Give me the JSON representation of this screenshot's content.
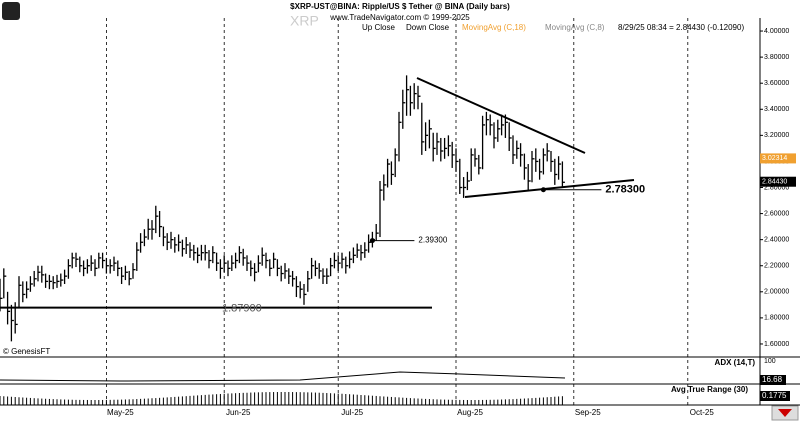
{
  "header": {
    "title": "$XRP-UST@BINA:  Ripple/US $ Tether @ BINA  (Daily bars)",
    "source": "www.TradeNavigator.com © 1999-2025",
    "watermark": "XRP"
  },
  "legend": [
    "Up Close",
    "Down Close",
    "MovingAvg (C,18)",
    "MovingAvg (C,8)"
  ],
  "status": "8/29/25 08:34 = 2.84430 (-0.12090)",
  "credit": "© GenesisFT",
  "chart_data": {
    "type": "ohlc",
    "x": [
      0,
      1,
      2,
      3,
      4,
      5,
      6,
      7,
      8,
      9,
      10,
      11,
      12,
      13,
      14,
      15,
      16,
      17,
      18,
      19,
      20,
      21,
      22,
      23,
      24,
      25,
      26,
      27,
      28,
      29,
      30,
      31,
      32,
      33,
      34,
      35,
      36,
      37,
      38,
      39,
      40,
      41,
      42,
      43,
      44,
      45,
      46,
      47,
      48,
      49,
      50,
      51,
      52,
      53,
      54,
      55,
      56,
      57,
      58,
      59,
      60,
      61,
      62,
      63,
      64,
      65,
      66,
      67,
      68,
      69,
      70,
      71,
      72,
      73,
      74,
      75,
      76,
      77,
      78,
      79,
      80,
      81,
      82,
      83,
      84,
      85,
      86,
      87,
      88,
      89,
      90,
      91,
      92,
      93,
      94,
      95,
      96,
      97,
      98,
      99,
      100,
      101,
      102,
      103,
      104,
      105,
      106,
      107,
      108,
      109,
      110,
      111,
      112,
      113,
      114,
      115,
      116,
      117,
      118,
      119,
      120,
      121,
      122,
      123,
      124,
      125,
      126,
      127,
      128,
      129,
      130,
      131,
      132,
      133,
      134,
      135,
      136,
      137,
      138,
      139,
      140,
      141,
      142,
      143,
      144,
      145,
      146,
      147,
      148,
      149,
      150
    ],
    "close": [
      2.08,
      2.05,
      1.95,
      2.12,
      1.85,
      1.78,
      1.75,
      2.05,
      1.98,
      2.02,
      2.06,
      2.1,
      2.15,
      2.13,
      2.08,
      2.08,
      2.07,
      2.08,
      2.09,
      2.12,
      2.2,
      2.26,
      2.25,
      2.2,
      2.18,
      2.2,
      2.22,
      2.18,
      2.26,
      2.24,
      2.2,
      2.2,
      2.22,
      2.18,
      2.12,
      2.15,
      2.1,
      2.17,
      2.32,
      2.38,
      2.42,
      2.48,
      2.48,
      2.58,
      2.5,
      2.42,
      2.38,
      2.4,
      2.36,
      2.38,
      2.33,
      2.36,
      2.32,
      2.3,
      2.28,
      2.3,
      2.3,
      2.24,
      2.3,
      2.22,
      2.18,
      2.22,
      2.18,
      2.22,
      2.24,
      2.3,
      2.26,
      2.22,
      2.18,
      2.15,
      2.22,
      2.28,
      2.24,
      2.18,
      2.25,
      2.18,
      2.14,
      2.16,
      2.12,
      2.1,
      2.04,
      2.02,
      1.98,
      2.1,
      2.2,
      2.18,
      2.16,
      2.12,
      2.12,
      2.2,
      2.24,
      2.22,
      2.25,
      2.2,
      2.25,
      2.28,
      2.32,
      2.3,
      2.32,
      2.38,
      2.4,
      2.45,
      2.78,
      2.82,
      2.98,
      2.9,
      3.05,
      3.3,
      3.45,
      3.55,
      3.45,
      3.52,
      3.5,
      3.15,
      3.2,
      3.25,
      3.1,
      3.15,
      3.08,
      3.1,
      3.12,
      3.05,
      3.0,
      2.8,
      2.8,
      2.85,
      3.05,
      3.02,
      2.95,
      3.28,
      3.32,
      3.28,
      3.18,
      3.25,
      3.28,
      3.3,
      3.18,
      3.05,
      3.1,
      3.05,
      2.95,
      2.85,
      3.02,
      3.0,
      2.92,
      3.05,
      3.08,
      3.0,
      2.9,
      2.98,
      2.84
    ],
    "high": [
      2.15,
      2.12,
      2.1,
      2.18,
      2.0,
      1.9,
      1.92,
      2.12,
      2.08,
      2.08,
      2.12,
      2.16,
      2.2,
      2.2,
      2.14,
      2.13,
      2.12,
      2.13,
      2.14,
      2.17,
      2.25,
      2.3,
      2.3,
      2.27,
      2.24,
      2.25,
      2.28,
      2.25,
      2.3,
      2.3,
      2.26,
      2.25,
      2.27,
      2.24,
      2.19,
      2.2,
      2.16,
      2.22,
      2.38,
      2.45,
      2.48,
      2.56,
      2.55,
      2.66,
      2.62,
      2.5,
      2.45,
      2.46,
      2.42,
      2.44,
      2.4,
      2.42,
      2.38,
      2.36,
      2.34,
      2.36,
      2.36,
      2.32,
      2.35,
      2.3,
      2.25,
      2.28,
      2.24,
      2.28,
      2.3,
      2.35,
      2.33,
      2.28,
      2.24,
      2.22,
      2.28,
      2.34,
      2.3,
      2.25,
      2.3,
      2.25,
      2.2,
      2.22,
      2.18,
      2.16,
      2.12,
      2.08,
      2.06,
      2.16,
      2.26,
      2.24,
      2.22,
      2.18,
      2.18,
      2.26,
      2.3,
      2.28,
      2.3,
      2.27,
      2.31,
      2.34,
      2.37,
      2.36,
      2.38,
      2.44,
      2.46,
      2.52,
      2.85,
      2.9,
      3.02,
      3.0,
      3.1,
      3.38,
      3.55,
      3.66,
      3.58,
      3.6,
      3.58,
      3.45,
      3.3,
      3.32,
      3.22,
      3.22,
      3.18,
      3.18,
      3.2,
      3.15,
      3.1,
      3.02,
      2.88,
      2.92,
      3.1,
      3.1,
      3.05,
      3.35,
      3.38,
      3.36,
      3.3,
      3.32,
      3.36,
      3.36,
      3.3,
      3.2,
      3.16,
      3.14,
      3.06,
      2.98,
      3.08,
      3.1,
      3.02,
      3.1,
      3.14,
      3.08,
      3.02,
      3.04,
      3.0
    ],
    "low": [
      2.0,
      1.98,
      1.85,
      1.95,
      1.75,
      1.62,
      1.68,
      1.88,
      1.92,
      1.95,
      2.0,
      2.04,
      2.08,
      2.07,
      2.03,
      2.02,
      2.02,
      2.03,
      2.04,
      2.06,
      2.1,
      2.18,
      2.19,
      2.15,
      2.12,
      2.14,
      2.16,
      2.12,
      2.18,
      2.18,
      2.14,
      2.14,
      2.16,
      2.12,
      2.06,
      2.09,
      2.05,
      2.1,
      2.16,
      2.3,
      2.35,
      2.4,
      2.4,
      2.45,
      2.42,
      2.35,
      2.32,
      2.33,
      2.3,
      2.31,
      2.27,
      2.29,
      2.26,
      2.24,
      2.22,
      2.24,
      2.24,
      2.18,
      2.22,
      2.16,
      2.1,
      2.15,
      2.12,
      2.16,
      2.18,
      2.22,
      2.2,
      2.16,
      2.12,
      2.08,
      2.15,
      2.2,
      2.18,
      2.12,
      2.18,
      2.12,
      2.08,
      2.1,
      2.06,
      2.04,
      1.96,
      1.95,
      1.9,
      2.0,
      2.1,
      2.12,
      2.1,
      2.06,
      2.06,
      2.12,
      2.18,
      2.16,
      2.18,
      2.14,
      2.18,
      2.22,
      2.26,
      2.24,
      2.26,
      2.3,
      2.34,
      2.39,
      2.42,
      2.7,
      2.8,
      2.82,
      2.88,
      3.0,
      3.25,
      3.35,
      3.35,
      3.4,
      3.4,
      3.05,
      3.08,
      3.1,
      3.0,
      3.05,
      3.0,
      3.02,
      3.04,
      2.95,
      2.92,
      2.75,
      2.72,
      2.78,
      2.85,
      2.96,
      2.9,
      2.94,
      3.2,
      3.2,
      3.1,
      3.15,
      3.2,
      3.18,
      3.08,
      2.98,
      3.02,
      2.96,
      2.86,
      2.78,
      2.84,
      2.92,
      2.86,
      2.9,
      3.0,
      2.92,
      2.82,
      2.86,
      2.8
    ],
    "color": "#000000",
    "xlim": [
      2,
      202
    ],
    "xticks": [
      {
        "value": 30,
        "label": "May-25"
      },
      {
        "value": 61,
        "label": "Jun-25"
      },
      {
        "value": 91,
        "label": "Jul-25"
      },
      {
        "value": 122,
        "label": "Aug-25"
      },
      {
        "value": 153,
        "label": "Sep-25"
      },
      {
        "value": 183,
        "label": "Oct-25"
      }
    ],
    "ylim": [
      1.5,
      4.1
    ],
    "yticks": [
      {
        "value": 1.6,
        "label": "1.60000"
      },
      {
        "value": 1.8,
        "label": "1.80000"
      },
      {
        "value": 2.0,
        "label": "2.00000"
      },
      {
        "value": 2.2,
        "label": "2.20000"
      },
      {
        "value": 2.4,
        "label": "2.40000"
      },
      {
        "value": 2.6,
        "label": "2.60000"
      },
      {
        "value": 2.8,
        "label": "2.80000"
      },
      {
        "value": 3.0,
        "label": "3.00000"
      },
      {
        "value": 3.2,
        "label": "3.20000"
      },
      {
        "value": 3.4,
        "label": "3.40000"
      },
      {
        "value": 3.6,
        "label": "3.60000"
      },
      {
        "value": 3.8,
        "label": "3.80000"
      },
      {
        "value": 4.0,
        "label": "4.00000"
      }
    ],
    "price_markers": [
      {
        "value": 3.02314,
        "label": "3.02314",
        "color": "#f0a030"
      },
      {
        "value": 2.8443,
        "label": "2.84430",
        "color": "#000000"
      }
    ],
    "annotations": [
      {
        "x": 100,
        "value": 2.393,
        "label": "2.39300"
      },
      {
        "x": 145,
        "value": 2.783,
        "label": "2.78300"
      },
      {
        "value": 1.879,
        "label": "1.87900"
      }
    ],
    "adx": {
      "title": "ADX (14,T)",
      "value": 16.68,
      "yticks": [
        100
      ]
    },
    "atr": {
      "title": "Avg True Range (30)",
      "value": 0.1775
    }
  }
}
